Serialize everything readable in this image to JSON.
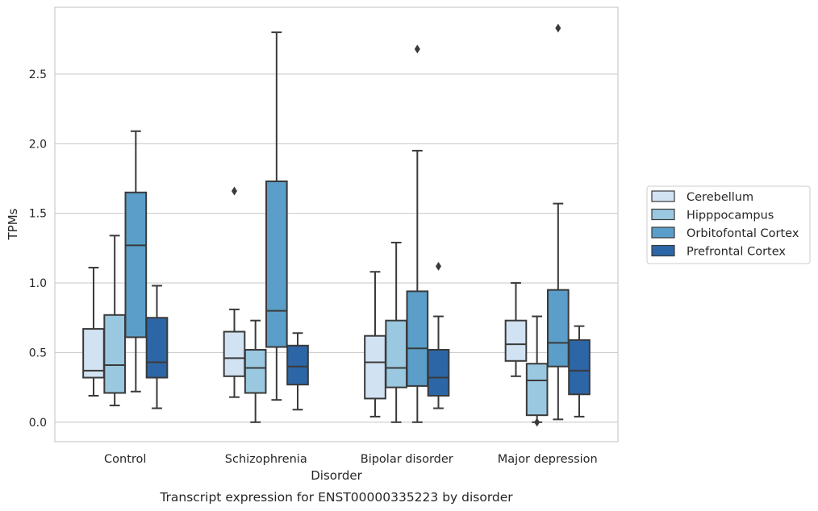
{
  "chart_data": {
    "type": "boxplot",
    "title": "",
    "caption": "Transcript expression for ENST00000335223 by disorder",
    "xlabel": "Disorder",
    "ylabel": "TPMs",
    "ylim": [
      -0.14,
      2.98
    ],
    "yticks": [
      {
        "value": 0.0,
        "label": "0.0"
      },
      {
        "value": 0.5,
        "label": "0.5"
      },
      {
        "value": 1.0,
        "label": "1.0"
      },
      {
        "value": 1.5,
        "label": "1.5"
      },
      {
        "value": 2.0,
        "label": "2.0"
      },
      {
        "value": 2.5,
        "label": "2.5"
      }
    ],
    "grid": "horizontal",
    "legend_position": "right",
    "categories": [
      "Control",
      "Schizophrenia",
      "Bipolar disorder",
      "Major depression"
    ],
    "series": [
      {
        "name": "Cerebellum",
        "color": "#d1e2f2",
        "boxes": [
          {
            "whislo": 0.19,
            "q1": 0.32,
            "med": 0.37,
            "q3": 0.67,
            "whishi": 1.11,
            "fliers": []
          },
          {
            "whislo": 0.18,
            "q1": 0.33,
            "med": 0.46,
            "q3": 0.65,
            "whishi": 0.81,
            "fliers": [
              1.66
            ]
          },
          {
            "whislo": 0.04,
            "q1": 0.17,
            "med": 0.43,
            "q3": 0.62,
            "whishi": 1.08,
            "fliers": []
          },
          {
            "whislo": 0.33,
            "q1": 0.44,
            "med": 0.56,
            "q3": 0.73,
            "whishi": 1.0,
            "fliers": []
          }
        ]
      },
      {
        "name": "Hipppocampus",
        "color": "#9ac8e0",
        "boxes": [
          {
            "whislo": 0.12,
            "q1": 0.21,
            "med": 0.41,
            "q3": 0.77,
            "whishi": 1.34,
            "fliers": []
          },
          {
            "whislo": 0.0,
            "q1": 0.21,
            "med": 0.39,
            "q3": 0.52,
            "whishi": 0.73,
            "fliers": []
          },
          {
            "whislo": 0.0,
            "q1": 0.25,
            "med": 0.39,
            "q3": 0.73,
            "whishi": 1.29,
            "fliers": []
          },
          {
            "whislo": 0.0,
            "q1": 0.05,
            "med": 0.3,
            "q3": 0.42,
            "whishi": 0.76,
            "fliers": [
              0.0
            ]
          }
        ]
      },
      {
        "name": "Orbitofontal Cortex",
        "color": "#5a9ec9",
        "boxes": [
          {
            "whislo": 0.22,
            "q1": 0.61,
            "med": 1.27,
            "q3": 1.65,
            "whishi": 2.09,
            "fliers": []
          },
          {
            "whislo": 0.16,
            "q1": 0.54,
            "med": 0.8,
            "q3": 1.73,
            "whishi": 2.8,
            "fliers": []
          },
          {
            "whislo": 0.0,
            "q1": 0.26,
            "med": 0.53,
            "q3": 0.94,
            "whishi": 1.95,
            "fliers": [
              2.68
            ]
          },
          {
            "whislo": 0.02,
            "q1": 0.4,
            "med": 0.57,
            "q3": 0.95,
            "whishi": 1.57,
            "fliers": [
              2.83
            ]
          }
        ]
      },
      {
        "name": "Prefrontal Cortex",
        "color": "#2d66a6",
        "boxes": [
          {
            "whislo": 0.1,
            "q1": 0.32,
            "med": 0.43,
            "q3": 0.75,
            "whishi": 0.98,
            "fliers": []
          },
          {
            "whislo": 0.09,
            "q1": 0.27,
            "med": 0.4,
            "q3": 0.55,
            "whishi": 0.64,
            "fliers": []
          },
          {
            "whislo": 0.1,
            "q1": 0.19,
            "med": 0.32,
            "q3": 0.52,
            "whishi": 0.76,
            "fliers": [
              1.12
            ]
          },
          {
            "whislo": 0.04,
            "q1": 0.2,
            "med": 0.37,
            "q3": 0.59,
            "whishi": 0.69,
            "fliers": []
          }
        ]
      }
    ]
  }
}
